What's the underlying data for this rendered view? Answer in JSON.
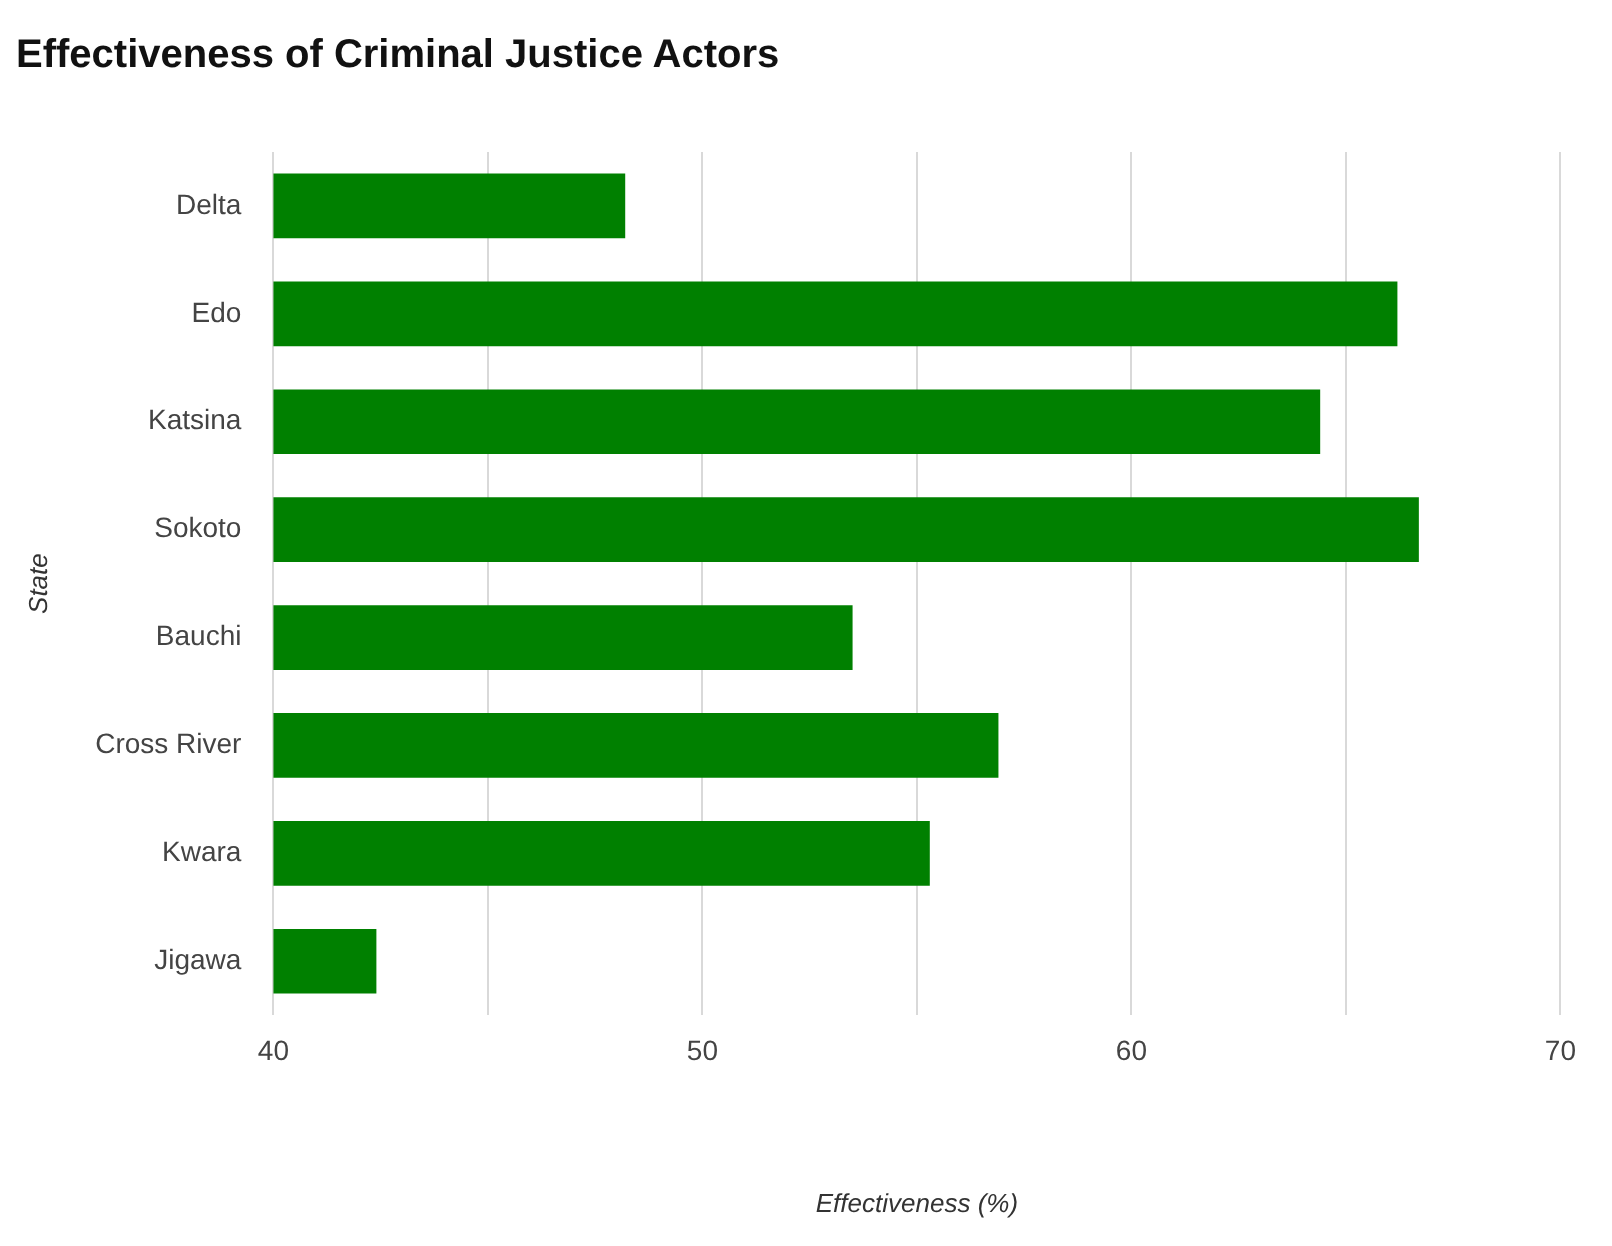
{
  "chart_data": {
    "type": "bar",
    "orientation": "horizontal",
    "title": "Effectiveness of Criminal Justice Actors",
    "xlabel": "Effectiveness (%)",
    "ylabel": "State",
    "categories": [
      "Delta",
      "Edo",
      "Katsina",
      "Sokoto",
      "Bauchi",
      "Cross River",
      "Kwara",
      "Jigawa"
    ],
    "values": [
      48.2,
      66.2,
      64.4,
      66.7,
      53.5,
      56.9,
      55.3,
      42.4
    ],
    "color": "#008000",
    "xlim": [
      40,
      70
    ],
    "xticks": [
      40,
      {
        "value": 45,
        "label": null
      },
      50,
      {
        "value": 55,
        "label": null
      },
      60,
      {
        "value": 65,
        "label": null
      },
      70
    ],
    "grid": "x",
    "legend": false
  }
}
